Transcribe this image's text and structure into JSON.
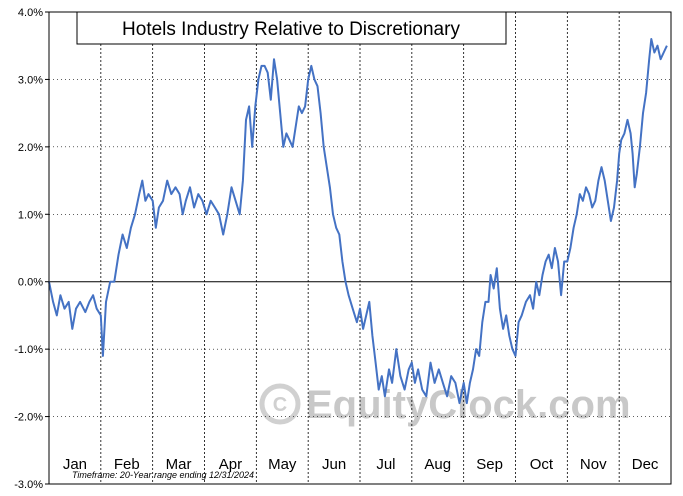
{
  "chart_data": {
    "type": "line",
    "title": "Hotels Industry Relative to Discretionary",
    "footnote": "Timeframe: 20-Year range ending 12/31/2024",
    "watermark": "EquityClock.com",
    "xlabel": "",
    "ylabel": "",
    "ylim": [
      -3.0,
      4.0
    ],
    "yticks": [
      {
        "value": 4.0,
        "label": "4.0%"
      },
      {
        "value": 3.0,
        "label": "3.0%"
      },
      {
        "value": 2.0,
        "label": "2.0%"
      },
      {
        "value": 1.0,
        "label": "1.0%"
      },
      {
        "value": 0.0,
        "label": "0.0%"
      },
      {
        "value": -1.0,
        "label": "-1.0%"
      },
      {
        "value": -2.0,
        "label": "-2.0%"
      },
      {
        "value": -3.0,
        "label": "-3.0%"
      }
    ],
    "months": [
      "Jan",
      "Feb",
      "Mar",
      "Apr",
      "May",
      "Jun",
      "Jul",
      "Aug",
      "Sep",
      "Oct",
      "Nov",
      "Dec"
    ],
    "grid": {
      "vertical": "dashed-month-boundaries",
      "horizontal": "dotted-at-ticks"
    },
    "line_color": "#4472c4",
    "series": [
      {
        "values": [
          [
            0.0,
            0.0
          ],
          [
            0.08,
            -0.3
          ],
          [
            0.15,
            -0.5
          ],
          [
            0.22,
            -0.2
          ],
          [
            0.3,
            -0.4
          ],
          [
            0.38,
            -0.3
          ],
          [
            0.45,
            -0.7
          ],
          [
            0.52,
            -0.4
          ],
          [
            0.6,
            -0.3
          ],
          [
            0.7,
            -0.45
          ],
          [
            0.78,
            -0.3
          ],
          [
            0.85,
            -0.2
          ],
          [
            0.92,
            -0.4
          ],
          [
            1.0,
            -0.5
          ],
          [
            1.04,
            -1.1
          ],
          [
            1.1,
            -0.3
          ],
          [
            1.18,
            0.0
          ],
          [
            1.26,
            0.0
          ],
          [
            1.34,
            0.4
          ],
          [
            1.42,
            0.7
          ],
          [
            1.5,
            0.5
          ],
          [
            1.58,
            0.8
          ],
          [
            1.66,
            1.0
          ],
          [
            1.74,
            1.3
          ],
          [
            1.8,
            1.5
          ],
          [
            1.86,
            1.2
          ],
          [
            1.92,
            1.3
          ],
          [
            2.0,
            1.2
          ],
          [
            2.06,
            0.8
          ],
          [
            2.12,
            1.1
          ],
          [
            2.2,
            1.2
          ],
          [
            2.28,
            1.5
          ],
          [
            2.36,
            1.3
          ],
          [
            2.44,
            1.4
          ],
          [
            2.52,
            1.3
          ],
          [
            2.58,
            1.0
          ],
          [
            2.64,
            1.2
          ],
          [
            2.72,
            1.4
          ],
          [
            2.8,
            1.1
          ],
          [
            2.88,
            1.3
          ],
          [
            2.96,
            1.2
          ],
          [
            3.04,
            1.0
          ],
          [
            3.12,
            1.2
          ],
          [
            3.2,
            1.1
          ],
          [
            3.28,
            1.0
          ],
          [
            3.36,
            0.7
          ],
          [
            3.44,
            1.0
          ],
          [
            3.52,
            1.4
          ],
          [
            3.6,
            1.2
          ],
          [
            3.68,
            1.0
          ],
          [
            3.74,
            1.5
          ],
          [
            3.8,
            2.4
          ],
          [
            3.86,
            2.6
          ],
          [
            3.92,
            2.0
          ],
          [
            3.98,
            2.6
          ],
          [
            4.04,
            3.0
          ],
          [
            4.1,
            3.2
          ],
          [
            4.16,
            3.2
          ],
          [
            4.22,
            3.1
          ],
          [
            4.28,
            2.7
          ],
          [
            4.34,
            3.3
          ],
          [
            4.4,
            3.0
          ],
          [
            4.46,
            2.5
          ],
          [
            4.52,
            2.0
          ],
          [
            4.58,
            2.2
          ],
          [
            4.64,
            2.1
          ],
          [
            4.7,
            2.0
          ],
          [
            4.76,
            2.3
          ],
          [
            4.82,
            2.6
          ],
          [
            4.88,
            2.5
          ],
          [
            4.94,
            2.6
          ],
          [
            5.0,
            3.0
          ],
          [
            5.06,
            3.2
          ],
          [
            5.12,
            3.0
          ],
          [
            5.18,
            2.9
          ],
          [
            5.24,
            2.5
          ],
          [
            5.3,
            2.0
          ],
          [
            5.36,
            1.7
          ],
          [
            5.42,
            1.4
          ],
          [
            5.48,
            1.0
          ],
          [
            5.54,
            0.8
          ],
          [
            5.6,
            0.7
          ],
          [
            5.66,
            0.3
          ],
          [
            5.72,
            0.0
          ],
          [
            5.78,
            -0.2
          ],
          [
            5.86,
            -0.4
          ],
          [
            5.94,
            -0.6
          ],
          [
            6.0,
            -0.4
          ],
          [
            6.06,
            -0.7
          ],
          [
            6.12,
            -0.5
          ],
          [
            6.18,
            -0.3
          ],
          [
            6.24,
            -0.8
          ],
          [
            6.3,
            -1.2
          ],
          [
            6.36,
            -1.6
          ],
          [
            6.42,
            -1.4
          ],
          [
            6.48,
            -1.7
          ],
          [
            6.56,
            -1.3
          ],
          [
            6.62,
            -1.5
          ],
          [
            6.7,
            -1.0
          ],
          [
            6.78,
            -1.4
          ],
          [
            6.86,
            -1.6
          ],
          [
            6.94,
            -1.3
          ],
          [
            7.0,
            -1.2
          ],
          [
            7.06,
            -1.5
          ],
          [
            7.12,
            -1.3
          ],
          [
            7.2,
            -1.6
          ],
          [
            7.28,
            -1.7
          ],
          [
            7.36,
            -1.2
          ],
          [
            7.44,
            -1.5
          ],
          [
            7.52,
            -1.3
          ],
          [
            7.6,
            -1.5
          ],
          [
            7.68,
            -1.7
          ],
          [
            7.76,
            -1.4
          ],
          [
            7.84,
            -1.5
          ],
          [
            7.92,
            -1.8
          ],
          [
            8.0,
            -1.5
          ],
          [
            8.06,
            -1.8
          ],
          [
            8.12,
            -1.5
          ],
          [
            8.18,
            -1.3
          ],
          [
            8.24,
            -1.0
          ],
          [
            8.3,
            -1.1
          ],
          [
            8.36,
            -0.6
          ],
          [
            8.42,
            -0.3
          ],
          [
            8.48,
            -0.3
          ],
          [
            8.52,
            0.1
          ],
          [
            8.58,
            -0.1
          ],
          [
            8.64,
            0.2
          ],
          [
            8.7,
            -0.4
          ],
          [
            8.76,
            -0.7
          ],
          [
            8.82,
            -0.5
          ],
          [
            8.88,
            -0.8
          ],
          [
            8.94,
            -1.0
          ],
          [
            9.0,
            -1.1
          ],
          [
            9.06,
            -0.6
          ],
          [
            9.12,
            -0.5
          ],
          [
            9.2,
            -0.3
          ],
          [
            9.28,
            -0.2
          ],
          [
            9.34,
            -0.4
          ],
          [
            9.4,
            0.0
          ],
          [
            9.46,
            -0.2
          ],
          [
            9.52,
            0.1
          ],
          [
            9.58,
            0.3
          ],
          [
            9.64,
            0.4
          ],
          [
            9.7,
            0.2
          ],
          [
            9.76,
            0.5
          ],
          [
            9.82,
            0.3
          ],
          [
            9.88,
            -0.2
          ],
          [
            9.94,
            0.3
          ],
          [
            10.0,
            0.3
          ],
          [
            10.06,
            0.5
          ],
          [
            10.12,
            0.8
          ],
          [
            10.18,
            1.0
          ],
          [
            10.24,
            1.3
          ],
          [
            10.3,
            1.2
          ],
          [
            10.36,
            1.4
          ],
          [
            10.42,
            1.3
          ],
          [
            10.48,
            1.1
          ],
          [
            10.54,
            1.2
          ],
          [
            10.6,
            1.5
          ],
          [
            10.66,
            1.7
          ],
          [
            10.72,
            1.5
          ],
          [
            10.78,
            1.2
          ],
          [
            10.84,
            0.9
          ],
          [
            10.9,
            1.1
          ],
          [
            10.96,
            1.5
          ],
          [
            11.0,
            1.9
          ],
          [
            11.04,
            2.1
          ],
          [
            11.1,
            2.2
          ],
          [
            11.16,
            2.4
          ],
          [
            11.22,
            2.2
          ],
          [
            11.26,
            1.9
          ],
          [
            11.3,
            1.4
          ],
          [
            11.34,
            1.6
          ],
          [
            11.4,
            2.0
          ],
          [
            11.46,
            2.5
          ],
          [
            11.52,
            2.8
          ],
          [
            11.58,
            3.3
          ],
          [
            11.62,
            3.6
          ],
          [
            11.68,
            3.4
          ],
          [
            11.74,
            3.5
          ],
          [
            11.8,
            3.3
          ],
          [
            11.86,
            3.4
          ],
          [
            11.92,
            3.5
          ]
        ]
      }
    ]
  }
}
